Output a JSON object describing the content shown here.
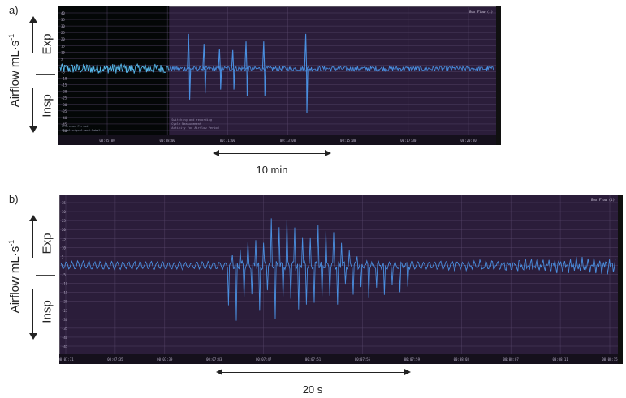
{
  "figure": {
    "panels": [
      {
        "label": "a)",
        "ylabel": "Airflow mL·s",
        "ylabel_sup": "-1",
        "exp_label": "Exp",
        "insp_label": "Insp",
        "corner_label": "Box Flow (i)",
        "span_label": "10 min",
        "note_left_lines": [
          "Pre-scan Period",
          "Local signal and labels"
        ],
        "note_center_lines": [
          "Switching and recording",
          "Cycle Measurement",
          "Activity for Airflow Period"
        ],
        "y_ticks": [
          "40",
          "35",
          "30",
          "25",
          "20",
          "15",
          "10",
          "5",
          "0",
          "-5",
          "-10",
          "-15",
          "-20",
          "-25",
          "-30",
          "-35",
          "-40",
          "-45",
          "-50"
        ],
        "x_ticks": [
          "00:05:00",
          "00:08:00",
          "00:11:00",
          "00:13:00",
          "00:15:00",
          "00:17:30",
          "00:20:00"
        ]
      },
      {
        "label": "b)",
        "ylabel": "Airflow mL·s",
        "ylabel_sup": "-1",
        "exp_label": "Exp",
        "insp_label": "Insp",
        "corner_label": "Box Flow (i)",
        "span_label": "20 s",
        "y_ticks": [
          "35",
          "30",
          "25",
          "20",
          "15",
          "10",
          "5",
          "0",
          "-5",
          "-10",
          "-15",
          "-20",
          "-25",
          "-30",
          "-35",
          "-40",
          "-45"
        ],
        "x_ticks": [
          "00:07:31",
          "00:07:35",
          "00:07:39",
          "00:07:43",
          "00:07:47",
          "00:07:51",
          "00:07:55",
          "00:07:59",
          "00:08:03",
          "00:08:07",
          "00:08:11",
          "00:08:15"
        ]
      }
    ],
    "colors": {
      "plot_bg": "#2b1d3a",
      "pre_bg": "#040707",
      "grid": "#5a4a6e",
      "trace": "#4a8fe0",
      "trace_pre": "#56b6e8",
      "tick_text": "#b8b0c8"
    }
  },
  "chart_data": [
    {
      "type": "line",
      "title": "",
      "xlabel": "",
      "ylabel": "Airflow mL·s-1",
      "ylim": [
        -50,
        45
      ],
      "x_axis": "time",
      "x": [
        "00:05:00",
        "00:08:00",
        "00:11:00",
        "00:13:00",
        "00:15:00",
        "00:17:30",
        "00:20:00"
      ],
      "baseline_amplitude": 2,
      "pre_period_amplitude": 4,
      "spikes": [
        {
          "t_frac": 0.295,
          "exp": 28,
          "insp": -25
        },
        {
          "t_frac": 0.33,
          "exp": 20,
          "insp": -20
        },
        {
          "t_frac": 0.365,
          "exp": 16,
          "insp": -17
        },
        {
          "t_frac": 0.395,
          "exp": 15,
          "insp": -17
        },
        {
          "t_frac": 0.425,
          "exp": 22,
          "insp": -22
        },
        {
          "t_frac": 0.465,
          "exp": 22,
          "insp": -22
        },
        {
          "t_frac": 0.56,
          "exp": 28,
          "insp": -36
        }
      ],
      "annotation_span": "10 min"
    },
    {
      "type": "line",
      "title": "",
      "xlabel": "",
      "ylabel": "Airflow mL·s-1",
      "ylim": [
        -45,
        35
      ],
      "x_axis": "time",
      "x": [
        "00:07:31",
        "00:07:35",
        "00:07:39",
        "00:07:43",
        "00:07:47",
        "00:07:51",
        "00:07:55",
        "00:07:59",
        "00:08:03",
        "00:08:07",
        "00:08:11",
        "00:08:15"
      ],
      "baseline_amplitude": 2,
      "burst_window_frac": [
        0.29,
        0.62
      ],
      "burst_peak_exp": 30,
      "burst_peak_insp": -38,
      "annotation_span": "20 s"
    }
  ]
}
